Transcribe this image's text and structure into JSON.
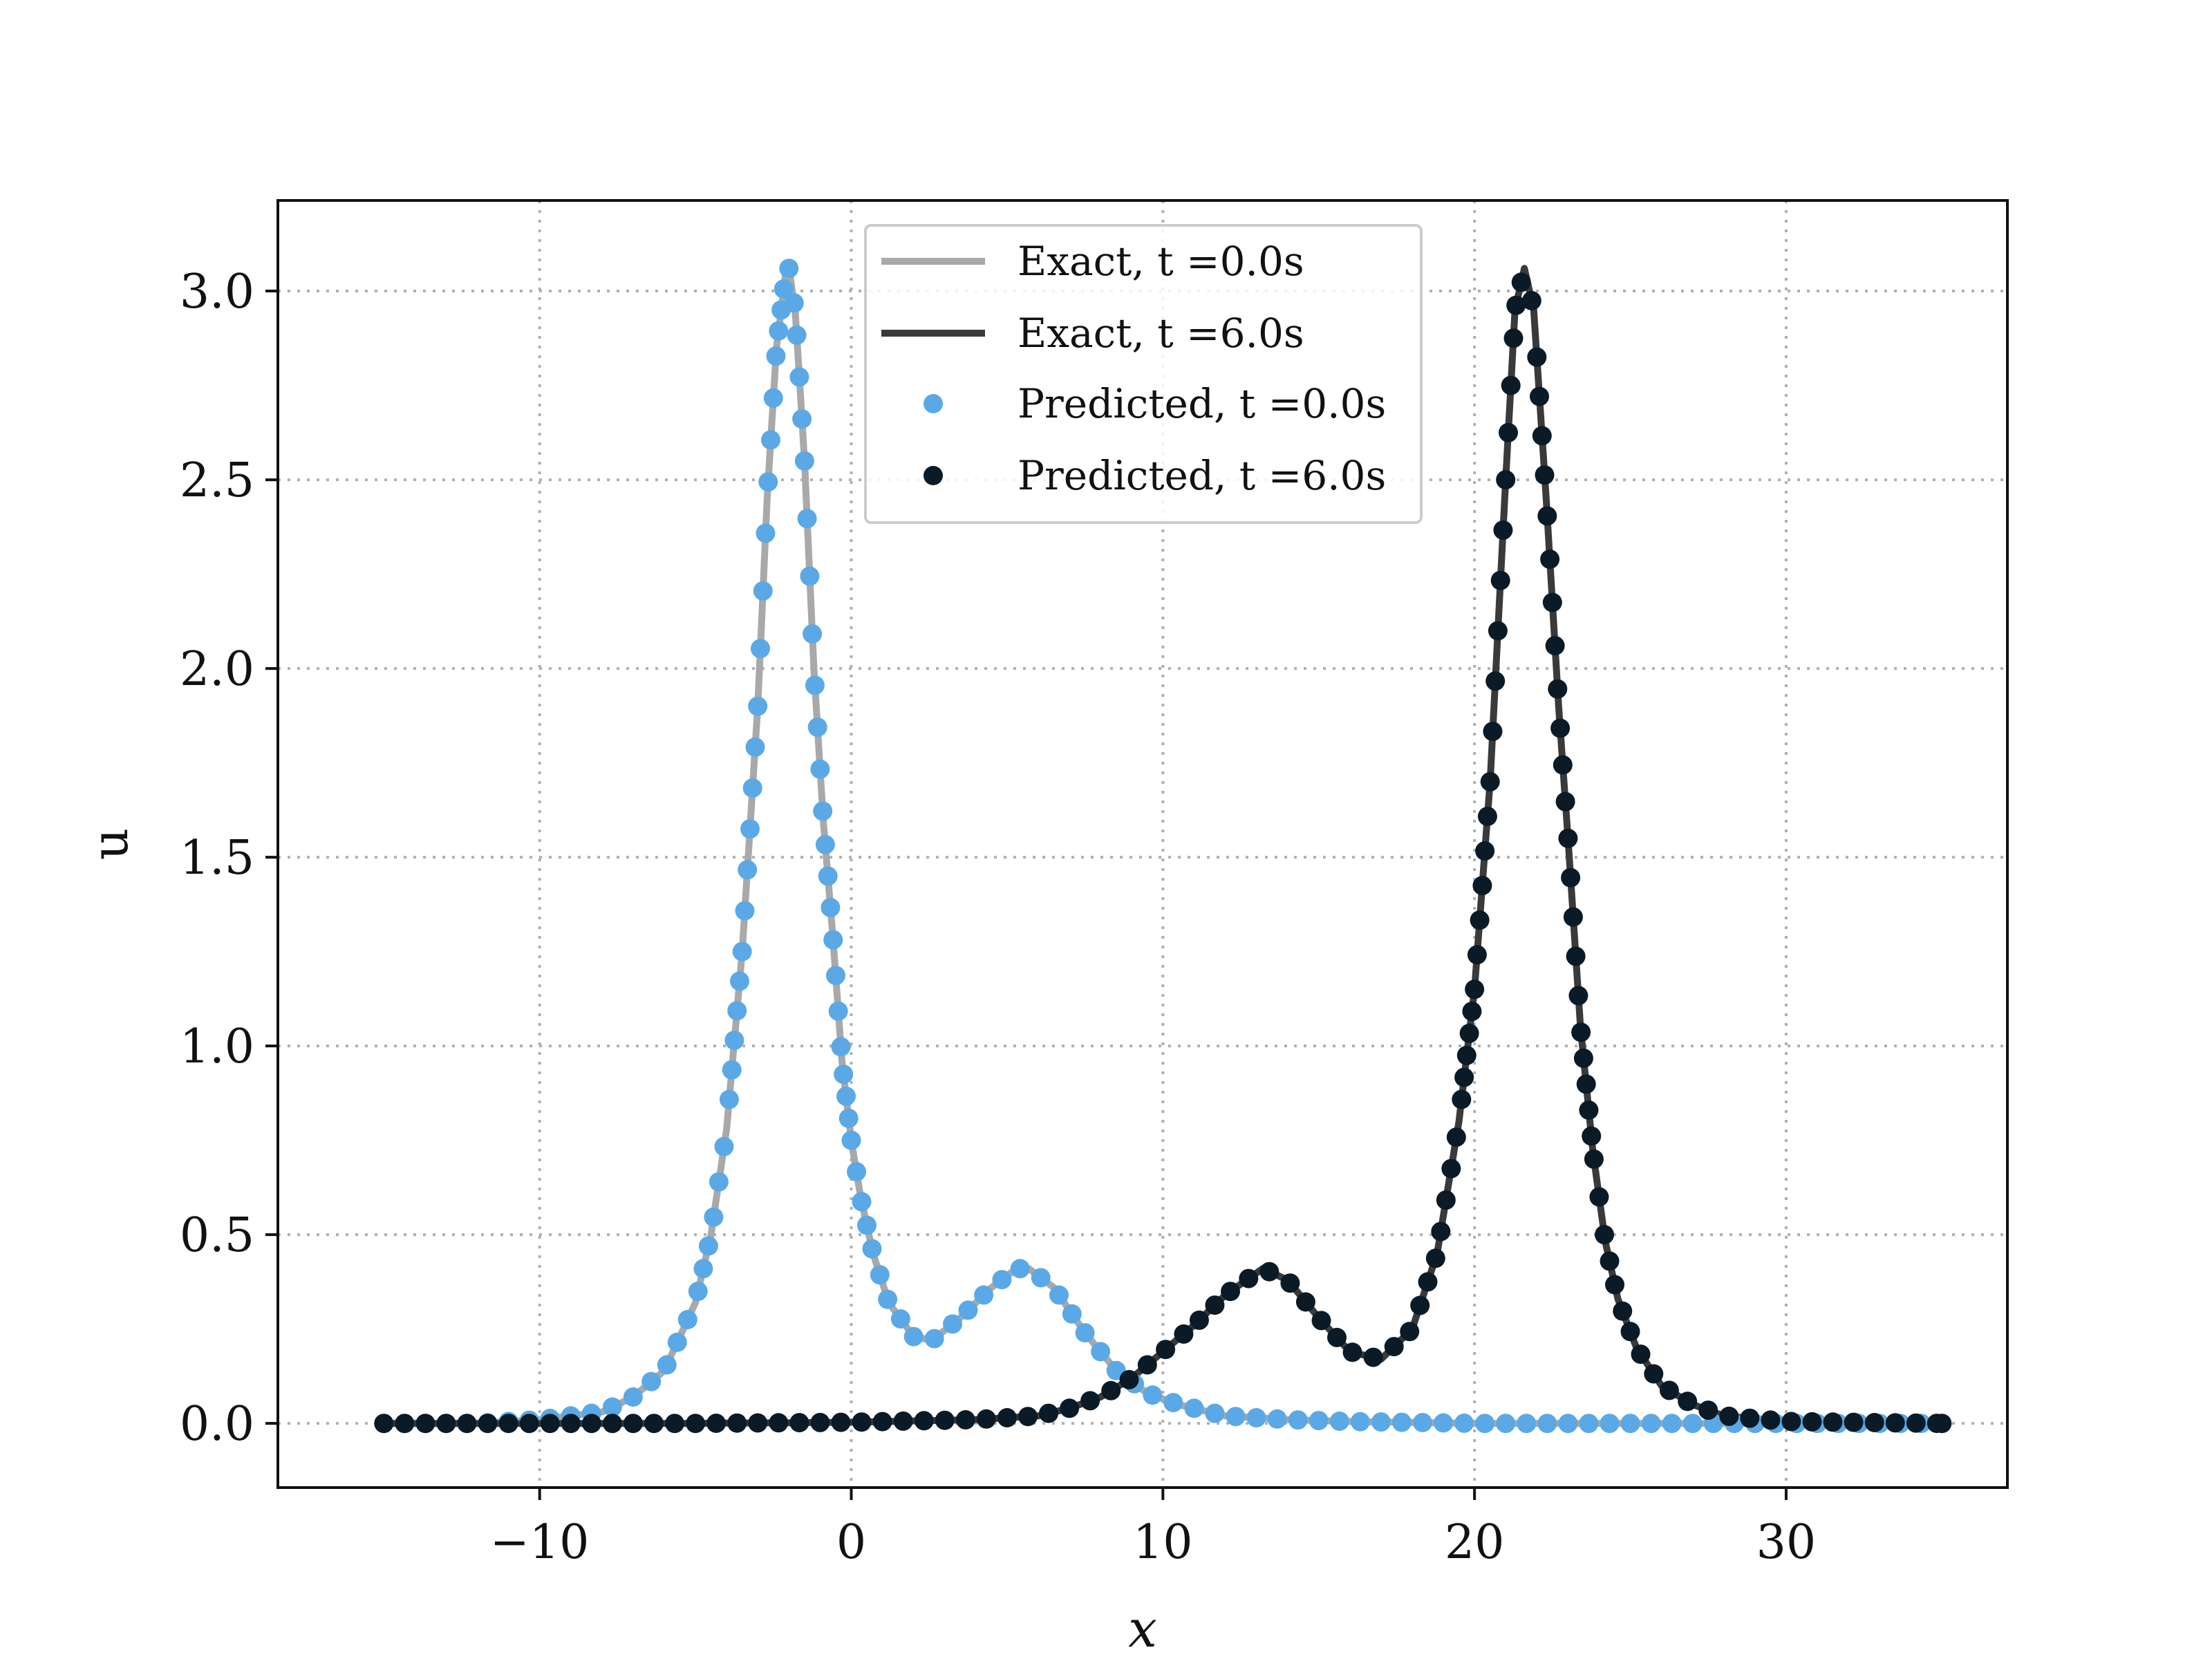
{
  "chart_data": {
    "type": "scatter",
    "title": "",
    "xlabel": "x",
    "ylabel": "u",
    "xlim": [
      -18.4,
      37.1
    ],
    "ylim": [
      -0.17,
      3.24
    ],
    "x_ticks": [
      -10,
      0,
      10,
      20,
      30
    ],
    "x_tick_labels": [
      "−10",
      "0",
      "10",
      "20",
      "30"
    ],
    "y_ticks": [
      0.0,
      0.5,
      1.0,
      1.5,
      2.0,
      2.5,
      3.0
    ],
    "y_tick_labels": [
      "0.0",
      "0.5",
      "1.0",
      "1.5",
      "2.0",
      "2.5",
      "3.0"
    ],
    "grid": true,
    "legend_position": "top-center",
    "x_domain": [
      -15,
      35
    ],
    "series": [
      {
        "name": "Exact, t =0.0s",
        "kind": "line",
        "color": "#a9a9a9",
        "x": [
          -15,
          -12,
          -10,
          -8,
          -7,
          -6,
          -5,
          -4.5,
          -4,
          -3.5,
          -3,
          -2.7,
          -2.4,
          -2.1,
          -2.0,
          -1.8,
          -1.5,
          -1.2,
          -0.9,
          -0.6,
          -0.3,
          0,
          0.3,
          0.7,
          1.2,
          2.0,
          2.6,
          3.5,
          4.5,
          5.3,
          5.7,
          6.5,
          7.5,
          8.5,
          9.5,
          10.5,
          12,
          14,
          16,
          20,
          25,
          30,
          35
        ],
        "y": [
          0,
          0.0,
          0.01,
          0.03,
          0.07,
          0.14,
          0.32,
          0.5,
          0.78,
          1.25,
          1.9,
          2.45,
          2.85,
          3.05,
          3.06,
          2.95,
          2.55,
          2.0,
          1.6,
          1.3,
          0.96,
          0.75,
          0.6,
          0.45,
          0.32,
          0.23,
          0.22,
          0.28,
          0.36,
          0.41,
          0.41,
          0.36,
          0.24,
          0.14,
          0.08,
          0.05,
          0.02,
          0.01,
          0.005,
          0.0,
          0,
          0,
          0
        ]
      },
      {
        "name": "Exact, t =6.0s",
        "kind": "line",
        "color": "#3a3a3a",
        "x": [
          -15,
          -5,
          0,
          4,
          6,
          7,
          8,
          9,
          10,
          11,
          12,
          13.2,
          14,
          15,
          16,
          17,
          18,
          18.8,
          19.5,
          20,
          20.5,
          21,
          21.3,
          21.6,
          21.9,
          22.3,
          22.7,
          23,
          23.4,
          23.8,
          24.2,
          24.6,
          25.2,
          26,
          27,
          28,
          30,
          35
        ],
        "y": [
          0,
          0,
          0.003,
          0.01,
          0.02,
          0.04,
          0.07,
          0.12,
          0.19,
          0.26,
          0.34,
          0.41,
          0.38,
          0.28,
          0.19,
          0.17,
          0.25,
          0.45,
          0.8,
          1.15,
          1.7,
          2.5,
          2.95,
          3.06,
          2.95,
          2.45,
          1.9,
          1.55,
          1.05,
          0.72,
          0.48,
          0.33,
          0.2,
          0.1,
          0.05,
          0.02,
          0.005,
          0
        ]
      },
      {
        "name": "Predicted, t =0.0s",
        "kind": "scatter",
        "color": "#5aa9e6",
        "x": [
          -15,
          -12,
          -10,
          -8,
          -7,
          -6,
          -5,
          -4.5,
          -4,
          -3.5,
          -3,
          -2.7,
          -2.4,
          -2.1,
          -2.0,
          -1.8,
          -1.5,
          -1.2,
          -0.9,
          -0.6,
          -0.3,
          0,
          0.3,
          0.7,
          1.2,
          2.0,
          2.6,
          3.5,
          4.5,
          5.3,
          5.7,
          6.5,
          7.5,
          8.5,
          9.5,
          10.5,
          12,
          14,
          16,
          20,
          25,
          30,
          35
        ],
        "y": [
          0,
          0.0,
          0.01,
          0.03,
          0.07,
          0.14,
          0.32,
          0.5,
          0.78,
          1.25,
          1.9,
          2.45,
          2.85,
          3.05,
          3.06,
          2.95,
          2.55,
          2.0,
          1.6,
          1.3,
          0.96,
          0.75,
          0.6,
          0.45,
          0.32,
          0.23,
          0.22,
          0.28,
          0.36,
          0.41,
          0.41,
          0.36,
          0.24,
          0.14,
          0.08,
          0.05,
          0.02,
          0.01,
          0.005,
          0.0,
          0,
          0,
          0
        ]
      },
      {
        "name": "Predicted, t =6.0s",
        "kind": "scatter",
        "color": "#0a1a26",
        "x": [
          -15,
          -5,
          0,
          4,
          6,
          7,
          8,
          9,
          10,
          11,
          12,
          13.2,
          14,
          15,
          16,
          17,
          18,
          18.8,
          19.5,
          20,
          20.5,
          21,
          21.3,
          21.6,
          21.9,
          22.3,
          22.7,
          23,
          23.4,
          23.8,
          24.2,
          24.6,
          25.2,
          26,
          27,
          28,
          30,
          35
        ],
        "y": [
          0,
          0,
          0.003,
          0.01,
          0.02,
          0.04,
          0.07,
          0.12,
          0.19,
          0.26,
          0.34,
          0.41,
          0.38,
          0.28,
          0.19,
          0.17,
          0.25,
          0.45,
          0.8,
          1.15,
          1.7,
          2.5,
          2.95,
          3.06,
          2.95,
          2.45,
          1.9,
          1.55,
          1.05,
          0.72,
          0.48,
          0.33,
          0.2,
          0.1,
          0.05,
          0.02,
          0.005,
          0
        ]
      }
    ]
  }
}
